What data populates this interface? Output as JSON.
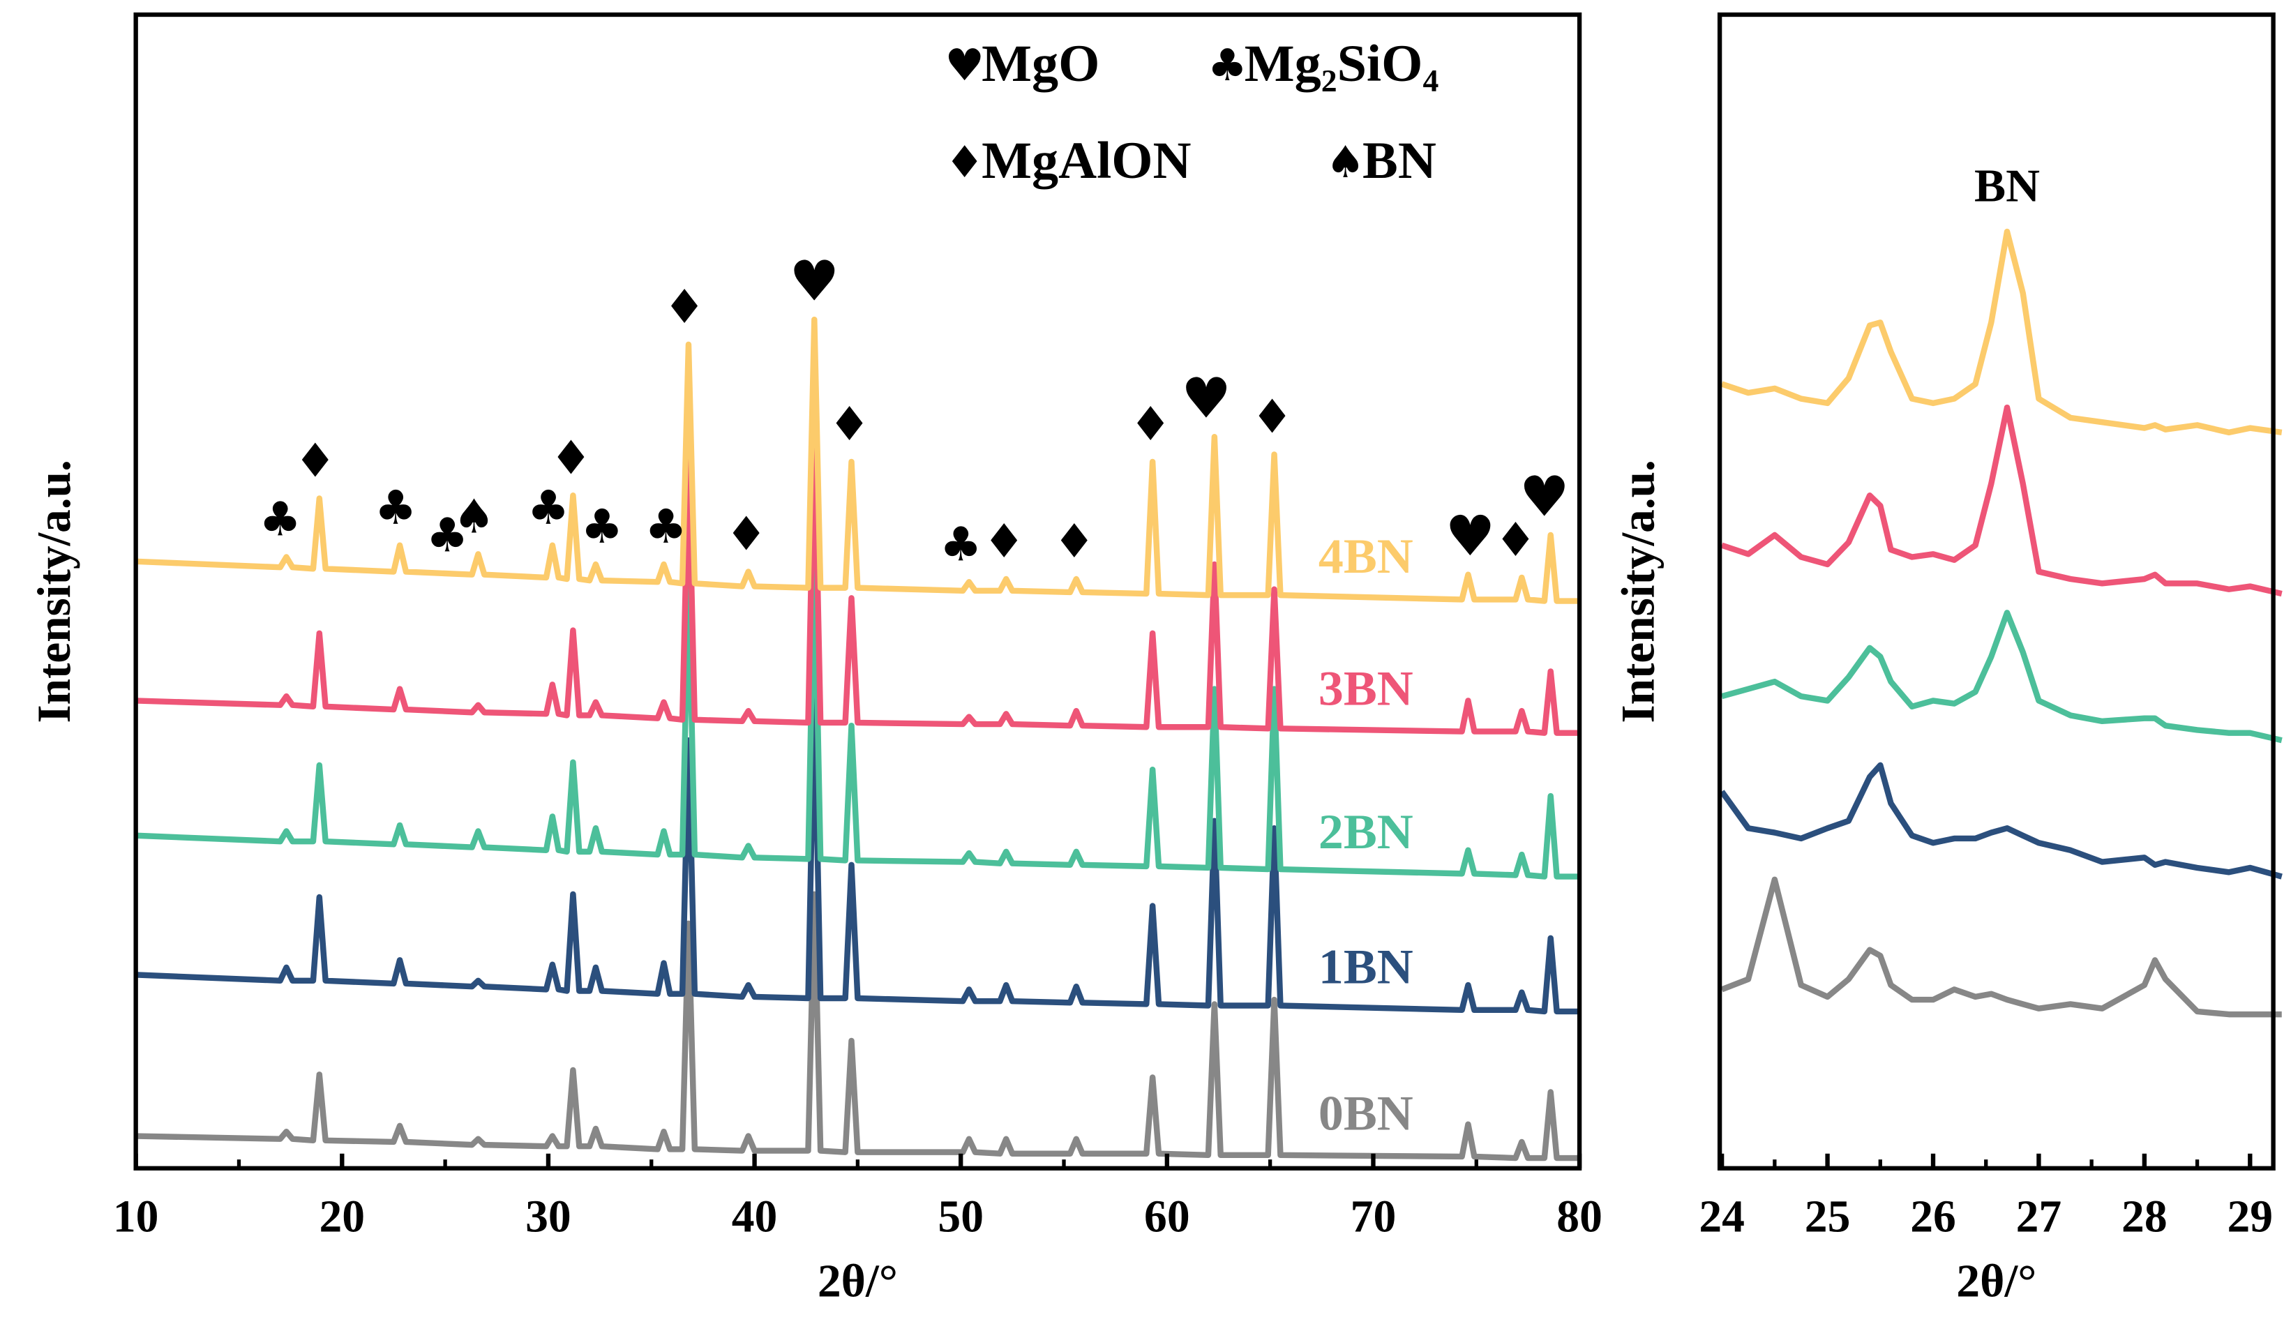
{
  "chart_data": [
    {
      "type": "line",
      "x_label": "2θ/°",
      "y_label": "Intensity/a.u.",
      "xlim": [
        10,
        80
      ],
      "xticks": [
        10,
        20,
        30,
        40,
        50,
        60,
        70,
        80
      ],
      "xminorticks": [
        15,
        25,
        35,
        45,
        55,
        65,
        75
      ],
      "ylim": [
        0,
        787
      ],
      "legend": [
        {
          "symbol": "♥",
          "name": "MgO"
        },
        {
          "symbol": "♣",
          "name": "Mg₂SiO₄"
        },
        {
          "symbol": "♦",
          "name": "MgAlON"
        },
        {
          "symbol": "♠",
          "name": "BN"
        }
      ],
      "peak_markers": [
        {
          "symbol": "♣",
          "x": 17.0
        },
        {
          "symbol": "♦",
          "x": 18.7
        },
        {
          "symbol": "♣",
          "x": 22.6
        },
        {
          "symbol": "♣",
          "x": 25.1
        },
        {
          "symbol": "♠",
          "x": 26.4
        },
        {
          "symbol": "♣",
          "x": 30.0
        },
        {
          "symbol": "♦",
          "x": 31.1
        },
        {
          "symbol": "♣",
          "x": 32.6
        },
        {
          "symbol": "♣",
          "x": 35.7
        },
        {
          "symbol": "♦",
          "x": 36.6
        },
        {
          "symbol": "♦",
          "x": 39.6
        },
        {
          "symbol": "♥",
          "x": 42.9
        },
        {
          "symbol": "♦",
          "x": 44.6
        },
        {
          "symbol": "♣",
          "x": 50.0
        },
        {
          "symbol": "♦",
          "x": 52.1
        },
        {
          "symbol": "♦",
          "x": 55.5
        },
        {
          "symbol": "♦",
          "x": 59.2
        },
        {
          "symbol": "♥",
          "x": 61.9
        },
        {
          "symbol": "♦",
          "x": 65.1
        },
        {
          "symbol": "♥",
          "x": 74.7
        },
        {
          "symbol": "♦",
          "x": 76.9
        },
        {
          "symbol": "♥",
          "x": 78.3
        }
      ],
      "x": [
        10,
        17.0,
        17.3,
        17.6,
        18.6,
        18.9,
        19.2,
        22.5,
        22.8,
        23.1,
        26.3,
        26.6,
        26.9,
        29.9,
        30.2,
        30.5,
        30.9,
        31.2,
        31.5,
        32.0,
        32.3,
        32.6,
        35.3,
        35.6,
        35.9,
        36.5,
        36.8,
        37.1,
        39.4,
        39.7,
        40.0,
        42.6,
        42.9,
        43.2,
        44.4,
        44.7,
        45.0,
        50.1,
        50.4,
        50.7,
        51.9,
        52.2,
        52.5,
        55.3,
        55.6,
        55.9,
        59.0,
        59.3,
        59.6,
        62.0,
        62.3,
        62.6,
        64.9,
        65.2,
        65.5,
        74.3,
        74.6,
        74.9,
        76.9,
        77.2,
        77.5,
        78.3,
        78.6,
        78.9,
        80
      ],
      "series": [
        {
          "name": "0BN",
          "color": "#878787",
          "values": [
            22,
            20,
            25,
            20,
            19,
            64,
            19,
            18,
            29,
            18,
            16,
            20,
            16,
            15,
            22,
            15,
            15,
            67,
            15,
            15,
            27,
            15,
            13,
            25,
            13,
            13,
            167,
            13,
            12,
            22,
            12,
            12,
            187,
            12,
            11,
            87,
            11,
            11,
            20,
            11,
            10,
            20,
            10,
            10,
            20,
            10,
            10,
            62,
            10,
            9,
            112,
            9,
            9,
            115,
            9,
            8,
            30,
            8,
            7,
            18,
            7,
            7,
            52,
            7,
            7
          ]
        },
        {
          "name": "1BN",
          "color": "#2b4f7d",
          "values": [
            132,
            128,
            137,
            128,
            128,
            185,
            128,
            126,
            142,
            126,
            124,
            128,
            124,
            122,
            139,
            122,
            121,
            187,
            121,
            121,
            137,
            121,
            119,
            140,
            119,
            119,
            292,
            119,
            117,
            125,
            117,
            116,
            322,
            116,
            116,
            207,
            116,
            114,
            122,
            114,
            114,
            125,
            114,
            113,
            124,
            113,
            112,
            179,
            112,
            111,
            237,
            111,
            111,
            232,
            111,
            108,
            125,
            108,
            108,
            120,
            108,
            107,
            157,
            107,
            107
          ]
        },
        {
          "name": "2BN",
          "color": "#4cbf9a",
          "values": [
            227,
            223,
            230,
            223,
            223,
            275,
            223,
            221,
            234,
            221,
            219,
            230,
            219,
            217,
            240,
            217,
            216,
            277,
            216,
            216,
            232,
            216,
            214,
            230,
            214,
            214,
            402,
            214,
            212,
            220,
            212,
            211,
            422,
            211,
            210,
            302,
            210,
            209,
            215,
            209,
            208,
            216,
            208,
            207,
            216,
            207,
            206,
            272,
            206,
            205,
            327,
            205,
            204,
            327,
            204,
            201,
            217,
            201,
            200,
            214,
            200,
            199,
            254,
            199,
            199
          ]
        },
        {
          "name": "3BN",
          "color": "#ee5577",
          "values": [
            319,
            316,
            322,
            316,
            315,
            365,
            315,
            313,
            327,
            313,
            311,
            316,
            311,
            310,
            330,
            310,
            309,
            367,
            309,
            309,
            318,
            309,
            307,
            318,
            307,
            306,
            482,
            306,
            305,
            312,
            305,
            304,
            505,
            304,
            304,
            389,
            304,
            303,
            308,
            303,
            303,
            310,
            303,
            302,
            312,
            302,
            301,
            365,
            301,
            301,
            412,
            301,
            300,
            395,
            300,
            298,
            319,
            298,
            298,
            312,
            298,
            297,
            339,
            297,
            297
          ]
        },
        {
          "name": "4BN",
          "color": "#fccb6b",
          "values": [
            414,
            410,
            417,
            410,
            409,
            457,
            409,
            407,
            425,
            407,
            405,
            419,
            405,
            403,
            425,
            403,
            402,
            459,
            402,
            401,
            412,
            401,
            400,
            412,
            400,
            399,
            562,
            399,
            397,
            407,
            397,
            396,
            579,
            396,
            396,
            482,
            396,
            394,
            400,
            394,
            394,
            402,
            394,
            393,
            402,
            393,
            392,
            482,
            392,
            391,
            499,
            391,
            391,
            487,
            391,
            388,
            405,
            388,
            388,
            403,
            388,
            387,
            432,
            387,
            387
          ]
        }
      ]
    },
    {
      "type": "line",
      "x_label": "2θ/°",
      "y_label": "Intensity/a.u.",
      "xlim": [
        23.98,
        29.22
      ],
      "xticks": [
        24,
        25,
        26,
        27,
        28,
        29
      ],
      "xminorticks": [
        24.5,
        25.5,
        26.5,
        27.5,
        28.5
      ],
      "ylim": [
        0,
        787
      ],
      "annotation": {
        "text": "BN",
        "x": 26.7
      },
      "x": [
        24.0,
        24.25,
        24.5,
        24.75,
        25.0,
        25.2,
        25.4,
        25.5,
        25.6,
        25.8,
        26.0,
        26.2,
        26.4,
        26.55,
        26.7,
        26.85,
        27.0,
        27.3,
        27.6,
        28.0,
        28.1,
        28.2,
        28.5,
        28.8,
        29.0,
        29.3
      ],
      "series": [
        {
          "color": "#878787",
          "values": [
            122,
            129,
            197,
            125,
            117,
            129,
            149,
            145,
            125,
            115,
            115,
            122,
            117,
            119,
            115,
            112,
            109,
            112,
            109,
            125,
            142,
            129,
            107,
            105,
            105,
            105
          ]
        },
        {
          "color": "#2b4f7d",
          "values": [
            257,
            232,
            229,
            225,
            232,
            237,
            267,
            275,
            249,
            227,
            222,
            225,
            225,
            229,
            232,
            227,
            222,
            217,
            209,
            212,
            207,
            209,
            205,
            202,
            205,
            199
          ]
        },
        {
          "color": "#4cbf9a",
          "values": [
            322,
            327,
            332,
            322,
            319,
            335,
            355,
            349,
            332,
            315,
            319,
            317,
            325,
            349,
            379,
            352,
            319,
            309,
            305,
            307,
            307,
            302,
            299,
            297,
            297,
            292
          ]
        },
        {
          "color": "#ee5577",
          "values": [
            425,
            419,
            432,
            417,
            412,
            427,
            459,
            452,
            422,
            417,
            419,
            415,
            425,
            467,
            519,
            467,
            407,
            402,
            399,
            402,
            405,
            399,
            399,
            395,
            397,
            392
          ]
        },
        {
          "color": "#fccb6b",
          "values": [
            535,
            529,
            532,
            525,
            522,
            539,
            575,
            577,
            557,
            525,
            522,
            525,
            535,
            577,
            639,
            597,
            525,
            512,
            509,
            505,
            507,
            504,
            507,
            502,
            505,
            502
          ]
        }
      ]
    }
  ]
}
